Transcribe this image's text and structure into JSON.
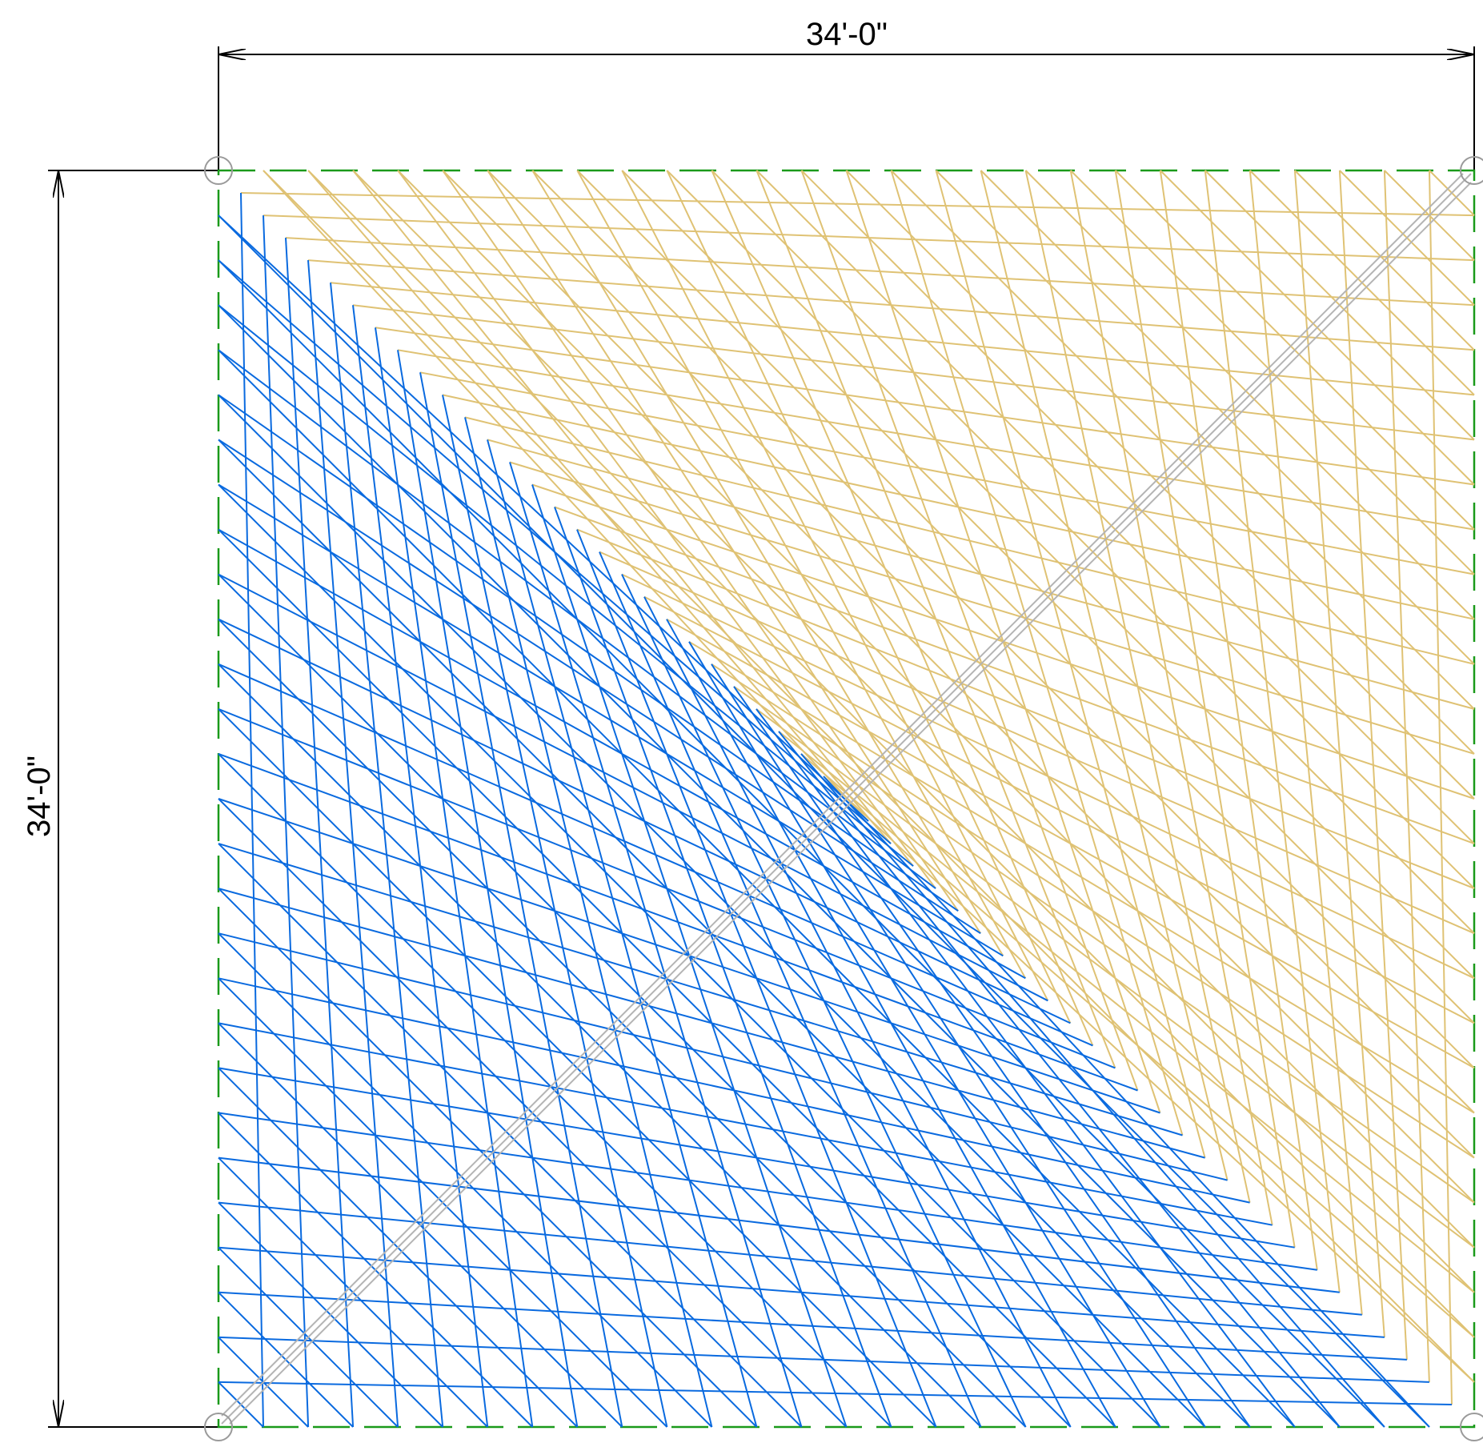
{
  "dimensions": {
    "width_label": "34'-0\"",
    "height_label": "34'-0\""
  },
  "colors": {
    "tan_web": "#dfc274",
    "blue_web": "#0a6adf",
    "boundary": "#1a9a1a",
    "diagonal": "#b4b4b4",
    "dimension": "#000000"
  },
  "icons": [
    "corner-anchor-circle",
    "dimension-arrow"
  ]
}
